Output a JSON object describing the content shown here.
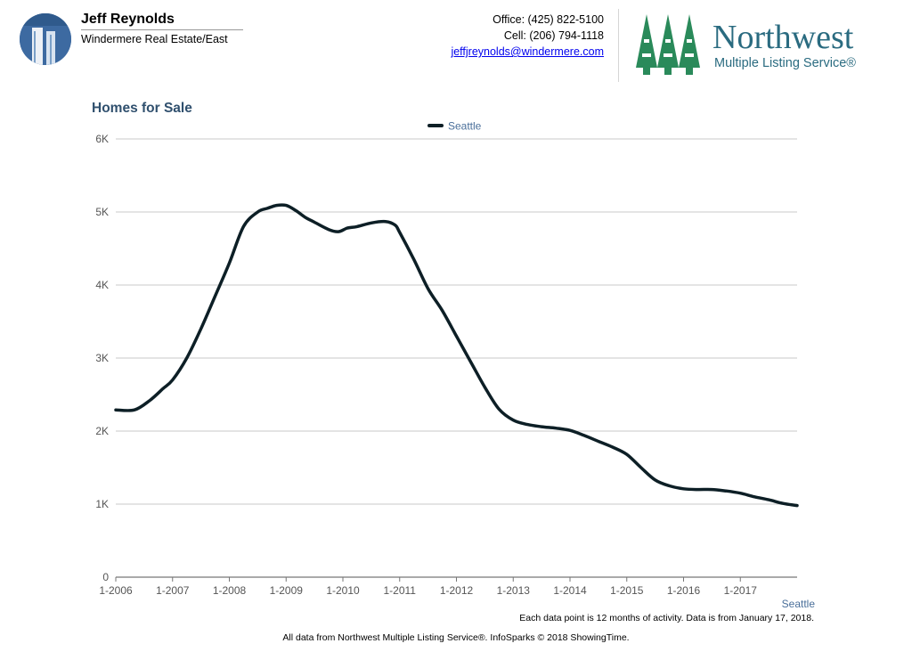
{
  "header": {
    "agent_name": "Jeff Reynolds",
    "agent_company": "Windermere Real Estate/East",
    "office": "Office: (425) 822-5100",
    "cell": "Cell: (206) 794-1118",
    "email": "jeffjreynolds@windermere.com",
    "logo_name": "Northwest",
    "logo_sub": "Multiple Listing Service®",
    "logo_color": "#2a8a5a"
  },
  "chart_data": {
    "type": "line",
    "title": "Homes for Sale",
    "xlabel": "",
    "ylabel": "",
    "x_ticks": [
      "1-2006",
      "1-2007",
      "1-2008",
      "1-2009",
      "1-2010",
      "1-2011",
      "1-2012",
      "1-2013",
      "1-2014",
      "1-2015",
      "1-2016",
      "1-2017"
    ],
    "y_ticks": [
      "0",
      "1K",
      "2K",
      "3K",
      "4K",
      "5K",
      "6K"
    ],
    "ylim": [
      0,
      6000
    ],
    "xlim": [
      2006.0,
      2018.0
    ],
    "legend": "top-center",
    "corner_label": "Seattle",
    "series": [
      {
        "name": "Seattle",
        "color": "#0d1f26",
        "x": [
          2006.0,
          2006.33,
          2006.6,
          2006.83,
          2007.0,
          2007.25,
          2007.5,
          2007.75,
          2008.0,
          2008.25,
          2008.5,
          2008.67,
          2008.83,
          2009.0,
          2009.17,
          2009.33,
          2009.5,
          2009.75,
          2009.92,
          2010.08,
          2010.25,
          2010.5,
          2010.75,
          2010.92,
          2011.0,
          2011.25,
          2011.5,
          2011.75,
          2012.0,
          2012.25,
          2012.5,
          2012.75,
          2013.0,
          2013.25,
          2013.5,
          2013.75,
          2014.0,
          2014.25,
          2014.5,
          2014.75,
          2015.0,
          2015.25,
          2015.5,
          2015.75,
          2016.0,
          2016.25,
          2016.5,
          2016.75,
          2017.0,
          2017.25,
          2017.5,
          2017.75,
          2018.0
        ],
        "values": [
          2290,
          2290,
          2420,
          2580,
          2700,
          3000,
          3400,
          3850,
          4300,
          4800,
          5000,
          5050,
          5090,
          5090,
          5020,
          4930,
          4860,
          4760,
          4730,
          4780,
          4800,
          4850,
          4870,
          4820,
          4720,
          4350,
          3950,
          3650,
          3300,
          2950,
          2600,
          2300,
          2150,
          2090,
          2060,
          2040,
          2010,
          1940,
          1860,
          1780,
          1680,
          1500,
          1330,
          1250,
          1210,
          1200,
          1200,
          1180,
          1150,
          1100,
          1060,
          1010,
          980
        ]
      }
    ]
  },
  "footer": {
    "note": "Each data point is 12 months of activity. Data is from January 17, 2018.",
    "credit": "All data from Northwest Multiple Listing Service®. InfoSparks © 2018 ShowingTime."
  }
}
